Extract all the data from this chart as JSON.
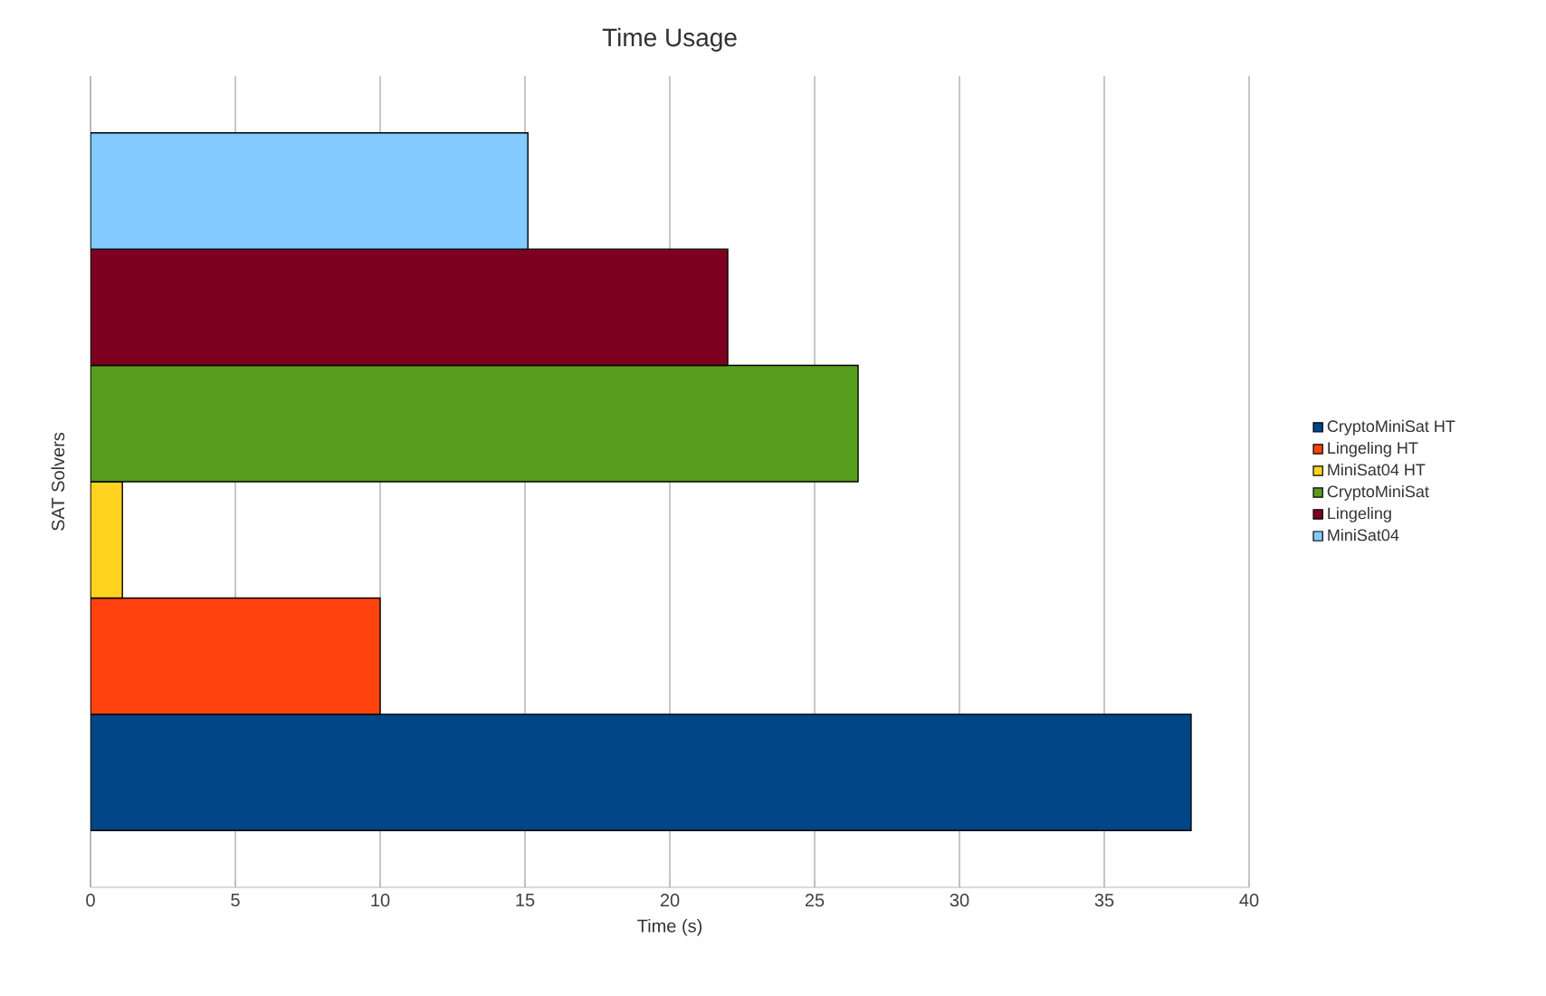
{
  "chart_data": {
    "type": "bar",
    "orientation": "horizontal",
    "title": "Time Usage",
    "xlabel": "Time (s)",
    "ylabel": "SAT Solvers",
    "categories": [
      null
    ],
    "series": [
      {
        "name": "CryptoMiniSat HT",
        "color": "#004586",
        "values": [
          38
        ]
      },
      {
        "name": "Lingeling HT",
        "color": "#ff420e",
        "values": [
          10
        ]
      },
      {
        "name": "MiniSat04 HT",
        "color": "#ffd320",
        "values": [
          1.1
        ]
      },
      {
        "name": "CryptoMiniSat",
        "color": "#579d1c",
        "values": [
          26.5
        ]
      },
      {
        "name": "Lingeling",
        "color": "#7e0021",
        "values": [
          22
        ]
      },
      {
        "name": "MiniSat04",
        "color": "#83caff",
        "values": [
          15.1
        ]
      }
    ],
    "xlim": [
      0,
      40
    ],
    "xticks": [
      0,
      5,
      10,
      15,
      20,
      25,
      30,
      35,
      40
    ],
    "grid": "x",
    "legend": "right",
    "tick_labels": "x"
  }
}
